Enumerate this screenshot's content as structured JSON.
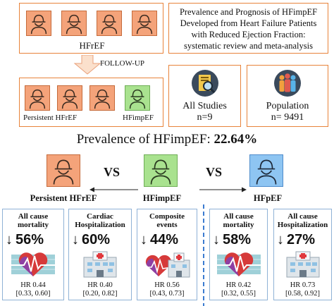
{
  "top": {
    "hfref_label": "HFrEF",
    "follow_up": "FOLLOW-UP",
    "persistent_label": "Persistent HFrEF",
    "hfimpef_label": "HFimpEF",
    "title_lines": [
      "Prevalence and Prognosis of HFimpEF",
      "Developed from Heart Failure Patients",
      "with Reduced Ejection Fraction:",
      "systematic review and meta-analysis"
    ],
    "studies": {
      "label": "All Studies",
      "value": "n=9"
    },
    "population": {
      "label": "Population",
      "value": "n= 9491"
    }
  },
  "prevalence": {
    "prefix": "Prevalence of HFimpEF: ",
    "value": "22.64%"
  },
  "comparison": {
    "vs": "VS",
    "left": "Persistent HFrEF",
    "middle": "HFimpEF",
    "right": "HFpEF"
  },
  "cards": [
    {
      "title": "All cause mortality",
      "arrow": "↓",
      "pct": "56%",
      "icon": "heart-icon",
      "hr": "HR 0.44",
      "ci": "[0.33, 0.60]"
    },
    {
      "title": "Cardiac Hospitalization",
      "arrow": "↓",
      "pct": "60%",
      "icon": "hospital-icon",
      "hr": "HR 0.40",
      "ci": "[0.20, 0.82]"
    },
    {
      "title": "Composite events",
      "arrow": "↓",
      "pct": "44%",
      "icon": "heart-hospital-icon",
      "hr": "HR 0.56",
      "ci": "[0.43, 0.73]"
    },
    {
      "title": "All cause mortality",
      "arrow": "↓",
      "pct": "58%",
      "icon": "heart-icon",
      "hr": "HR 0.42",
      "ci": "[0.32, 0.55]"
    },
    {
      "title": "All cause Hospitalization",
      "arrow": "↓",
      "pct": "27%",
      "icon": "hospital-icon",
      "hr": "HR 0.73",
      "ci": "[0.58, 0.92]"
    }
  ],
  "colors": {
    "orange": "#e8833a",
    "orange_fill": "#f4a37a",
    "green_fill": "#a9e28f",
    "blue_fill": "#8ec5f2",
    "card_border": "#8fb2d6",
    "divider": "#3b7bd0"
  }
}
